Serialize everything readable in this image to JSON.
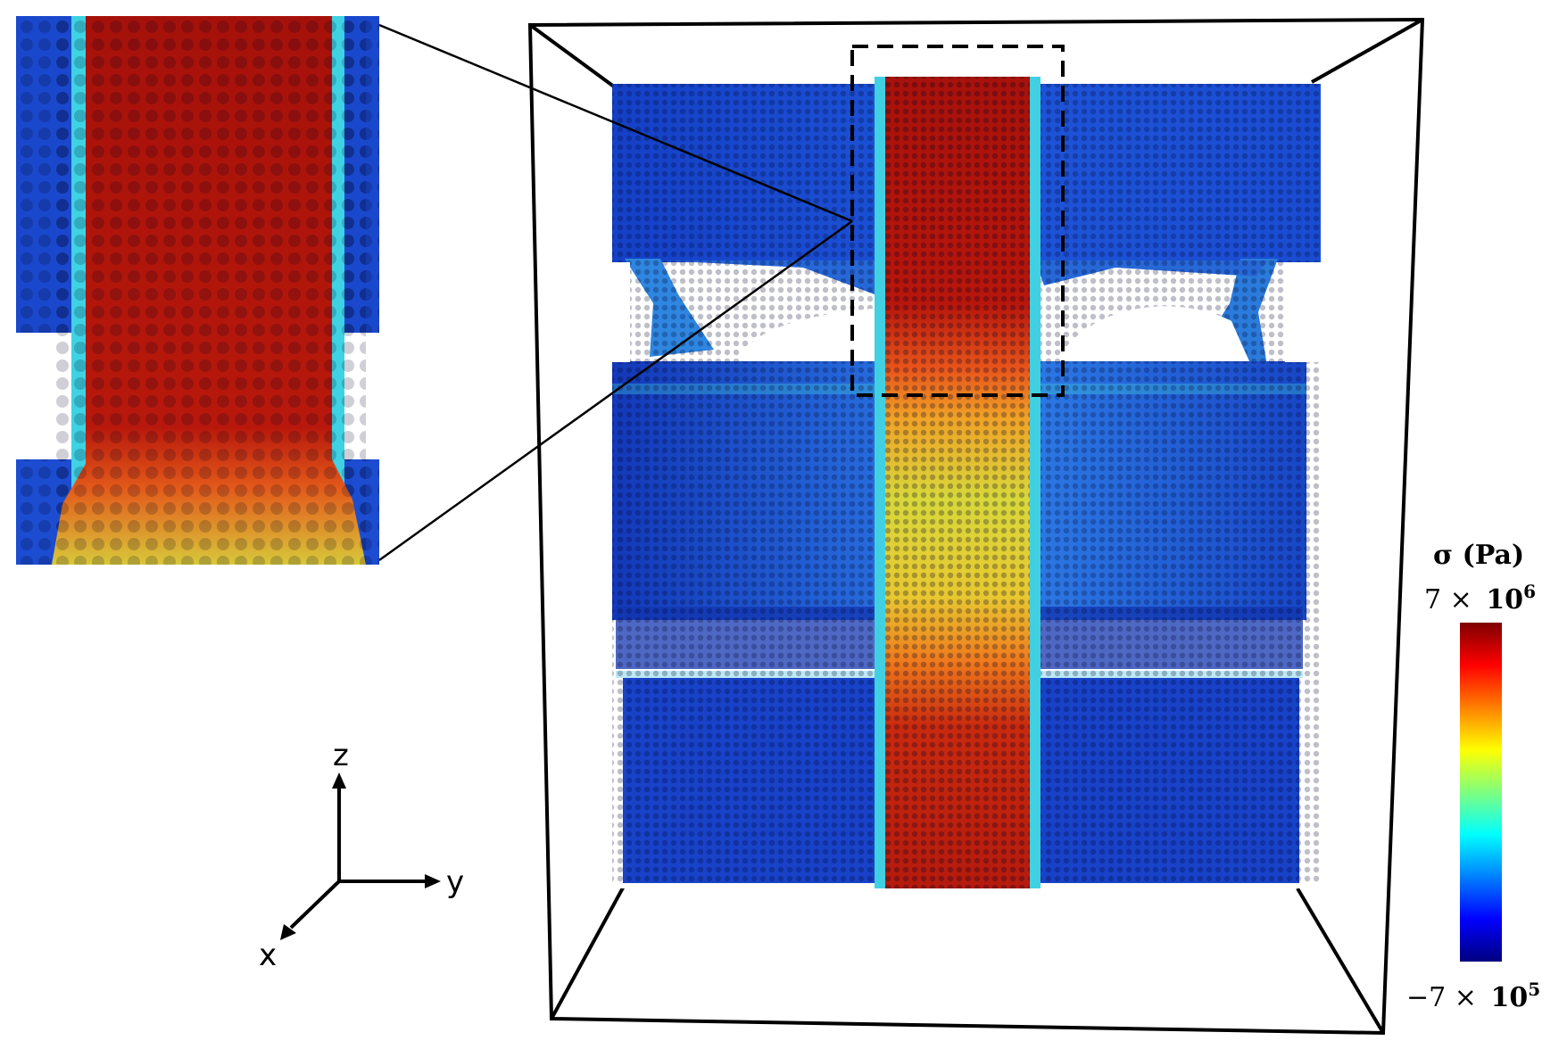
{
  "axes": {
    "z": "z",
    "y": "y",
    "x": "x"
  },
  "colorbar": {
    "title": "σ (Pa)",
    "max_label": {
      "coef": "7 ×",
      "base": "10",
      "exp": "6"
    },
    "min_label": {
      "coef": "−7 ×",
      "base": "10",
      "exp": "5"
    },
    "max_value": 7000000,
    "min_value": -700000,
    "colormap": "jet",
    "colors": [
      "#00007f",
      "#0000ff",
      "#007fff",
      "#00ffff",
      "#7fff7f",
      "#ffff00",
      "#ff7f00",
      "#ff0000",
      "#7f0000"
    ]
  },
  "specimen": {
    "particle_color_matrix": "#1f4fd0",
    "particle_color_interface": "#3ad2e6",
    "particle_color_bar_top": "#b41508",
    "particle_color_bar_middle": "#e3d530",
    "particle_color_bar_bottom": "#c8260c"
  }
}
